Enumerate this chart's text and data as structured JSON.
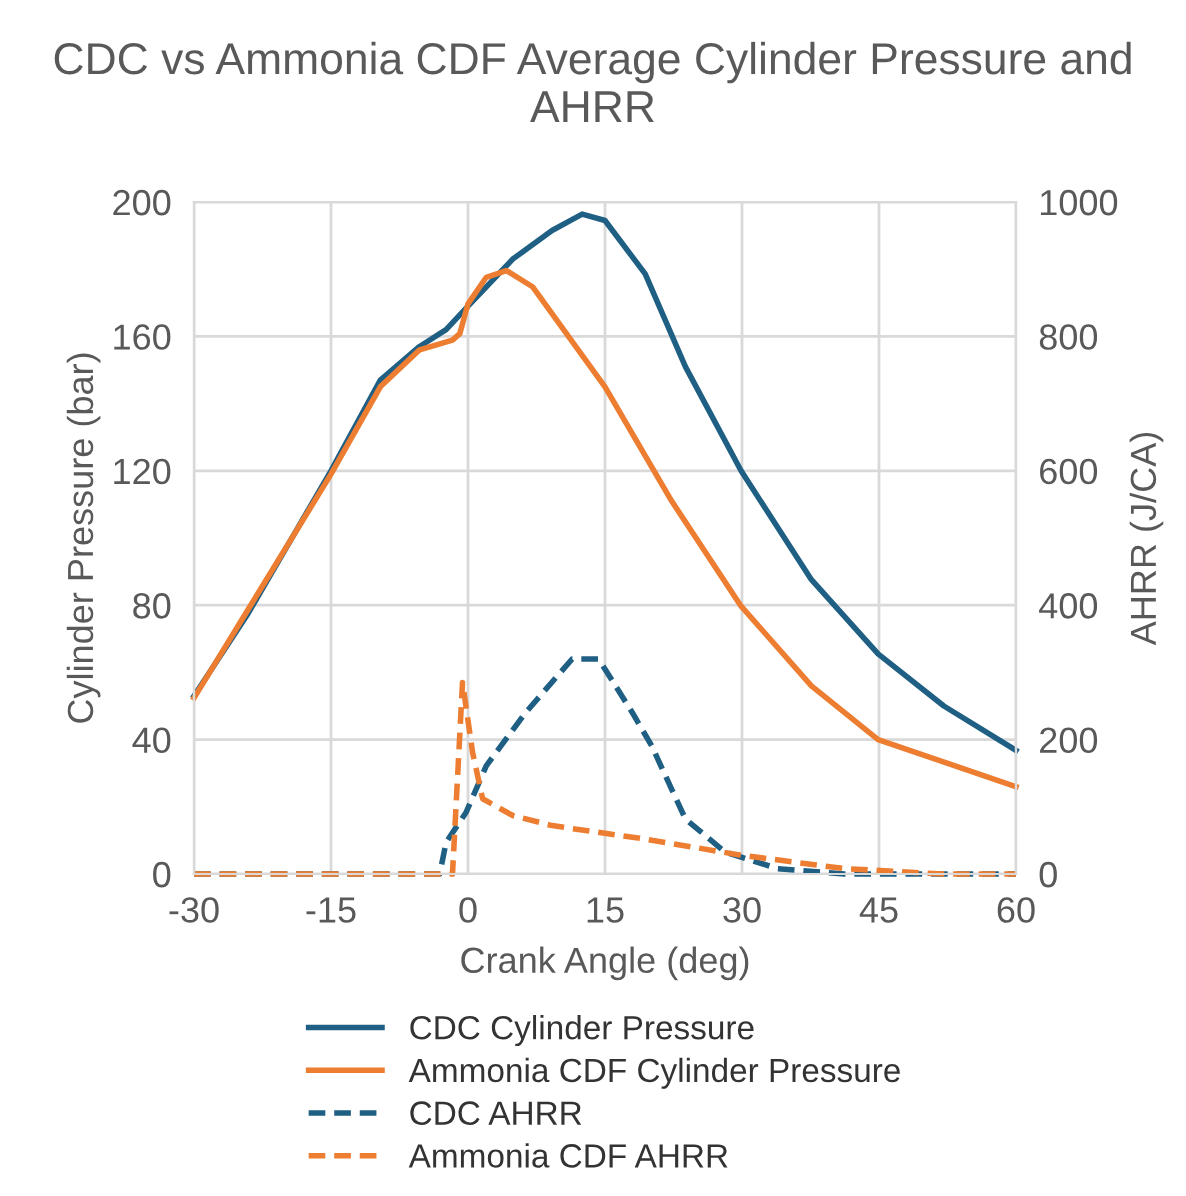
{
  "chart_data": {
    "type": "line",
    "title": "CDC vs Ammonia CDF Average Cylinder Pressure and AHRR",
    "xlabel": "Crank Angle (deg)",
    "ylabel": "Cylinder Pressure (bar)",
    "y2label": "AHRR (J/CA)",
    "xlim": [
      -30,
      60
    ],
    "xticks": [
      -30,
      -15,
      0,
      15,
      30,
      45,
      60
    ],
    "ylim": [
      0,
      200
    ],
    "yticks": [
      0,
      40,
      80,
      120,
      160,
      200
    ],
    "y2lim": [
      0,
      1000
    ],
    "y2ticks": [
      0,
      200,
      400,
      600,
      800,
      1000
    ],
    "grid": true,
    "legend": "bottom",
    "marker": "none",
    "series": [
      {
        "name": "CDC Cylinder Pressure",
        "color": "#1f5f84",
        "line_style": "solid",
        "x": [
          -30,
          -24.2,
          -15,
          -9.6,
          -5.3,
          -2.4,
          0,
          4.9,
          9.2,
          12.5,
          15,
          19.4,
          23.8,
          29.9,
          37.6,
          44.9,
          52.1,
          60
        ],
        "values": [
          53,
          77,
          120,
          147,
          157,
          162,
          169,
          183,
          191.5,
          196.4,
          194.5,
          178.6,
          151,
          120,
          87.6,
          65.5,
          50,
          36.8
        ]
      },
      {
        "name": "Ammonia CDF Cylinder Pressure",
        "color": "#ed7d31",
        "line_style": "solid",
        "x": [
          -30,
          -15,
          -9.6,
          -5.3,
          -1.7,
          -0.9,
          0,
          2,
          4.2,
          7.1,
          15,
          22.3,
          29.9,
          37.6,
          44.9,
          60
        ],
        "values": [
          52.4,
          119,
          145,
          156,
          158.9,
          160.8,
          169.7,
          177.6,
          179.6,
          174.7,
          145,
          111,
          79.7,
          56,
          40,
          26
        ]
      },
      {
        "name": "CDC AHRR",
        "color": "#1f5f84",
        "line_style": "dashed",
        "axis": "y2",
        "x": [
          -30,
          -3.1,
          -2.4,
          -0.2,
          2,
          6.3,
          11.4,
          14.3,
          18,
          20.1,
          23.8,
          28.1,
          33.9,
          41.2,
          60
        ],
        "values": [
          0,
          0,
          47,
          92,
          161,
          240,
          320,
          320,
          240,
          191,
          82,
          33,
          8,
          0,
          0
        ]
      },
      {
        "name": "Ammonia CDF AHRR",
        "color": "#ed7d31",
        "line_style": "dashed",
        "axis": "y2",
        "x": [
          -30,
          -1.7,
          -0.6,
          0.5,
          1.6,
          4.9,
          9.2,
          19.4,
          29.9,
          41.2,
          52,
          60
        ],
        "values": [
          0,
          0,
          285,
          181,
          112,
          87,
          72,
          52,
          28,
          8,
          0,
          0
        ]
      }
    ]
  }
}
